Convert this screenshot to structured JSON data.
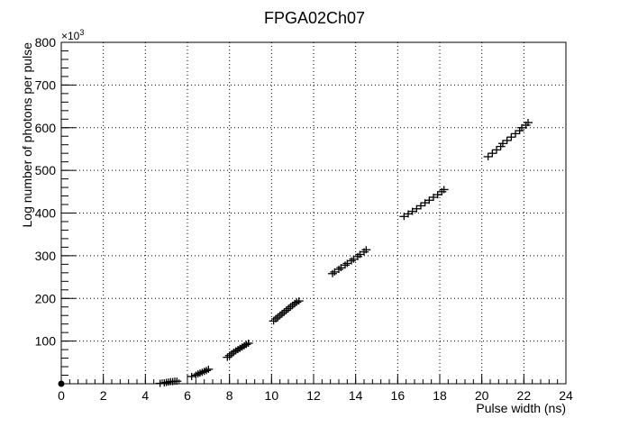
{
  "chart_data": {
    "type": "scatter",
    "title": "FPGA02Ch07",
    "xlabel": "Pulse width (ns)",
    "ylabel": "Log number of photons per pulse",
    "y_multiplier": "×10",
    "y_multiplier_exp": "3",
    "xlim": [
      0,
      24
    ],
    "ylim": [
      0,
      800
    ],
    "grid": true,
    "x_ticks": [
      0,
      2,
      4,
      6,
      8,
      10,
      12,
      14,
      16,
      18,
      20,
      22,
      24
    ],
    "x_tick_labels": [
      "0",
      "2",
      "4",
      "6",
      "8",
      "10",
      "12",
      "14",
      "16",
      "18",
      "20",
      "22",
      "24"
    ],
    "y_ticks": [
      100,
      200,
      300,
      400,
      500,
      600,
      700,
      800
    ],
    "y_tick_labels": [
      "100",
      "200",
      "300",
      "400",
      "500",
      "600",
      "700",
      "800"
    ],
    "series": [
      {
        "marker": "cross-with-error-bars",
        "clusters": [
          {
            "x": [
              0.0
            ],
            "y": [
              0
            ]
          },
          {
            "x": [
              4.7,
              4.9,
              5.0,
              5.1,
              5.2,
              5.3,
              5.4,
              5.5
            ],
            "y": [
              1,
              2,
              3,
              4,
              5,
              5,
              6,
              6
            ]
          },
          {
            "x": [
              6.2,
              6.4,
              6.5,
              6.6,
              6.7,
              6.8,
              6.9,
              7.0
            ],
            "y": [
              17,
              20,
              23,
              25,
              27,
              29,
              31,
              34
            ]
          },
          {
            "x": [
              7.9,
              8.0,
              8.1,
              8.2,
              8.3,
              8.4,
              8.5,
              8.6,
              8.7,
              8.8,
              8.9
            ],
            "y": [
              62,
              66,
              70,
              74,
              77,
              80,
              83,
              86,
              89,
              92,
              95
            ]
          },
          {
            "x": [
              10.1,
              10.2,
              10.3,
              10.4,
              10.5,
              10.6,
              10.7,
              10.8,
              10.9,
              11.0,
              11.1,
              11.2,
              11.3
            ],
            "y": [
              147,
              152,
              156,
              160,
              164,
              168,
              172,
              176,
              180,
              184,
              188,
              191,
              194
            ]
          },
          {
            "x": [
              12.9,
              13.0,
              13.2,
              13.3,
              13.5,
              13.6,
              13.8,
              13.9,
              14.1,
              14.2,
              14.4,
              14.5
            ],
            "y": [
              258,
              262,
              268,
              272,
              278,
              282,
              288,
              292,
              298,
              303,
              309,
              314
            ]
          },
          {
            "x": [
              16.3,
              16.5,
              16.7,
              16.9,
              17.1,
              17.3,
              17.5,
              17.7,
              17.9,
              18.1,
              18.2
            ],
            "y": [
              392,
              398,
              404,
              410,
              417,
              424,
              430,
              437,
              443,
              450,
              455
            ]
          },
          {
            "x": [
              20.3,
              20.5,
              20.7,
              20.9,
              21.0,
              21.2,
              21.4,
              21.6,
              21.8,
              21.9,
              22.1,
              22.2
            ],
            "y": [
              532,
              540,
              548,
              556,
              563,
              570,
              578,
              586,
              593,
              600,
              606,
              612
            ]
          }
        ]
      }
    ]
  }
}
